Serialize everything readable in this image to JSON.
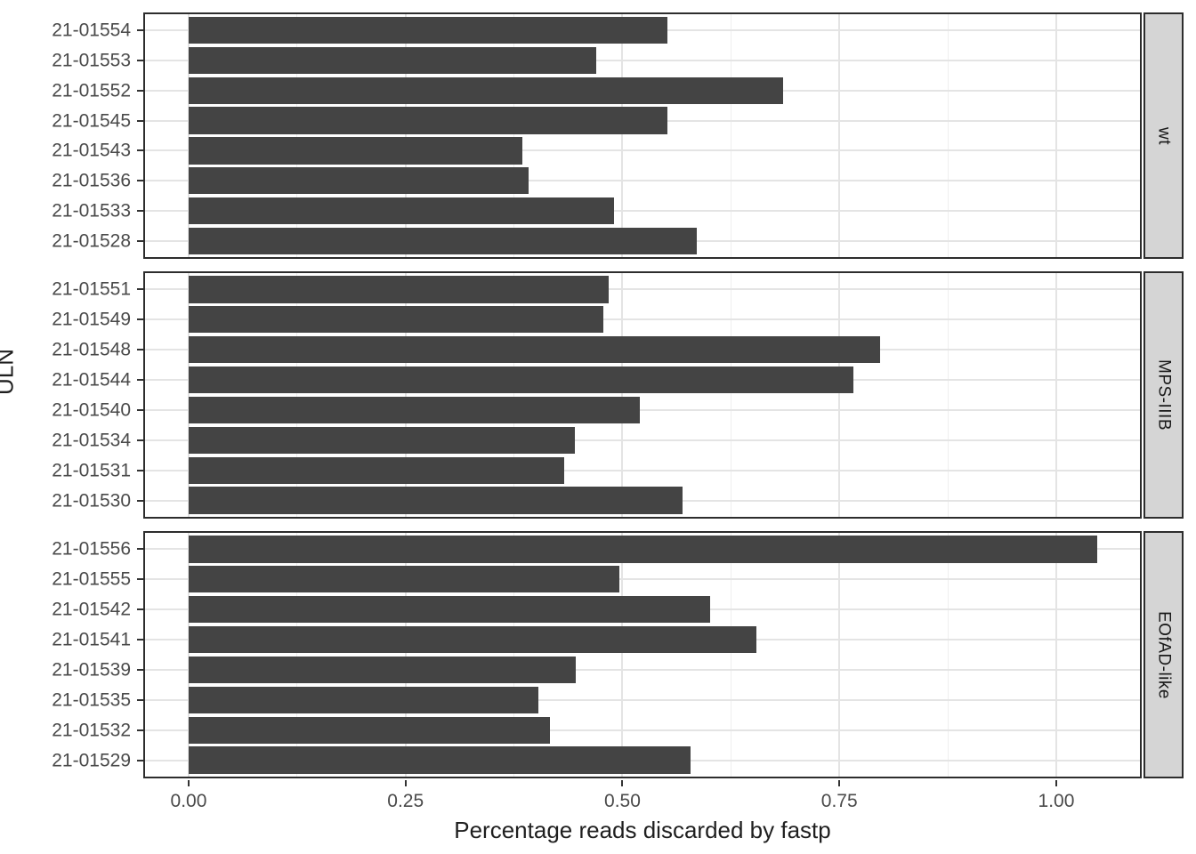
{
  "chart_data": {
    "type": "bar",
    "orientation": "horizontal",
    "title": "",
    "xlabel": "Percentage reads discarded by fastp",
    "ylabel": "ULN",
    "xlim": [
      0,
      1.1
    ],
    "grid": true,
    "legend": false,
    "bar_color": "#444444",
    "x_major_ticks": [
      0.0,
      0.25,
      0.5,
      0.75,
      1.0
    ],
    "x_tick_labels": [
      "0.00",
      "0.25",
      "0.50",
      "0.75",
      "1.00"
    ],
    "x_minor_ticks": [
      0.125,
      0.375,
      0.625,
      0.875
    ],
    "facets": [
      {
        "label": "wt",
        "categories": [
          "21-01554",
          "21-01553",
          "21-01552",
          "21-01545",
          "21-01543",
          "21-01536",
          "21-01533",
          "21-01528"
        ],
        "values": [
          0.552,
          0.47,
          0.685,
          0.552,
          0.385,
          0.392,
          0.49,
          0.586
        ]
      },
      {
        "label": "MPS-IIIB",
        "categories": [
          "21-01551",
          "21-01549",
          "21-01548",
          "21-01544",
          "21-01540",
          "21-01534",
          "21-01531",
          "21-01530"
        ],
        "values": [
          0.484,
          0.478,
          0.797,
          0.766,
          0.52,
          0.445,
          0.433,
          0.569
        ]
      },
      {
        "label": "EOfAD-like",
        "categories": [
          "21-01556",
          "21-01555",
          "21-01542",
          "21-01541",
          "21-01539",
          "21-01535",
          "21-01532",
          "21-01529"
        ],
        "values": [
          1.047,
          0.496,
          0.601,
          0.654,
          0.446,
          0.403,
          0.416,
          0.578
        ]
      }
    ]
  },
  "colors": {
    "bar": "#444444",
    "strip_fill": "#d5d5d5",
    "panel_border": "#2d2d2d",
    "grid_major": "#e4e4e4",
    "grid_minor": "#efefef",
    "axis_text": "#4a4a4a",
    "title_text": "#1f1f1f"
  }
}
